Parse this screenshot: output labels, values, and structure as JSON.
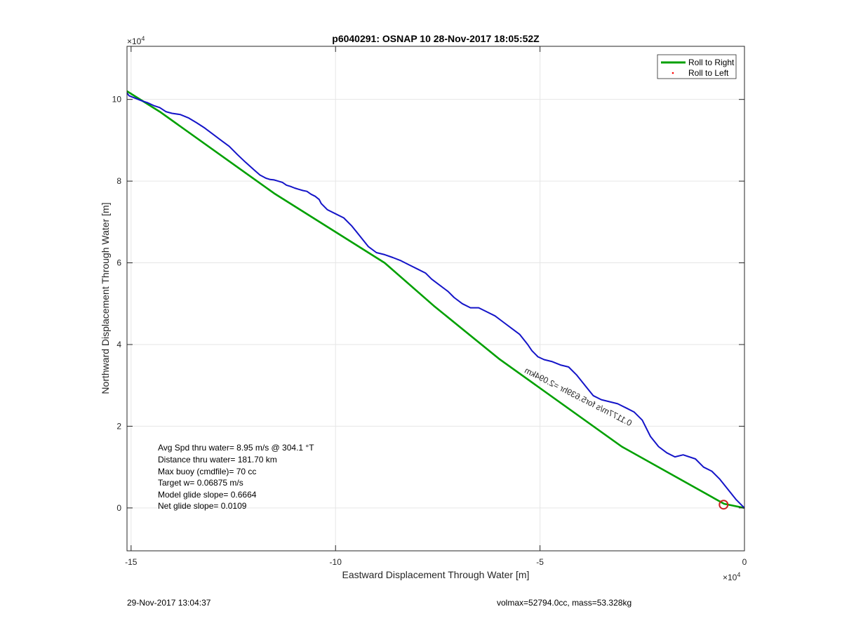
{
  "chart_data": {
    "type": "line",
    "title": "p6040291: OSNAP 10 28-Nov-2017 18:05:52Z",
    "xlabel": "Eastward Displacement Through Water [m]",
    "ylabel": "Northward Displacement Through Water [m]",
    "x_multiplier": "×10",
    "x_exponent": "4",
    "y_multiplier": "×10",
    "y_exponent": "4",
    "xlim": [
      -151000,
      0
    ],
    "ylim": [
      -10500,
      113000
    ],
    "x_ticks": [
      -150000,
      -100000,
      -50000,
      0
    ],
    "x_tick_labels": [
      "-15",
      "-10",
      "-5",
      "0"
    ],
    "y_ticks": [
      0,
      20000,
      40000,
      60000,
      80000,
      100000
    ],
    "y_tick_labels": [
      "0",
      "2",
      "4",
      "6",
      "8",
      "10"
    ],
    "grid": true,
    "legend_position": "top-right",
    "legend": [
      {
        "label": "Roll to Right",
        "style": "line",
        "color": "#00a000"
      },
      {
        "label": "Roll to Left",
        "style": "dot",
        "color": "#ff0000"
      }
    ],
    "series": [
      {
        "name": "Roll to Right",
        "color": "#00a000",
        "x": [
          0,
          -5000,
          -30000,
          -60000,
          -76000,
          -88000,
          -115000,
          -143000,
          -151000
        ],
        "y": [
          0,
          1000,
          15000,
          36500,
          49500,
          60000,
          77000,
          97000,
          102000
        ]
      },
      {
        "color": "#1414c8",
        "x": [
          0,
          -2000,
          -4000,
          -6000,
          -8000,
          -10000,
          -12000,
          -15000,
          -17000,
          -19000,
          -21000,
          -23000,
          -25000,
          -27000,
          -29000,
          -31000,
          -33000,
          -35000,
          -37000,
          -39000,
          -41000,
          -43000,
          -45000,
          -47000,
          -49000,
          -50500,
          -52000,
          -53000,
          -55000,
          -57000,
          -59000,
          -61000,
          -63000,
          -65000,
          -67000,
          -69000,
          -71000,
          -72500,
          -74500,
          -76500,
          -78000,
          -80000,
          -82000,
          -84000,
          -86000,
          -88000,
          -90000,
          -92000,
          -94000,
          -96000,
          -98000,
          -100000,
          -102000,
          -103500,
          -104000,
          -105000,
          -106000,
          -107000,
          -108000,
          -109000,
          -110000,
          -111000,
          -112000,
          -113000,
          -115000,
          -116000,
          -117000,
          -118500,
          -120000,
          -122000,
          -124000,
          -126000,
          -128000,
          -130000,
          -132000,
          -134000,
          -136000,
          -138000,
          -140000,
          -141500,
          -143000,
          -144500,
          -146000,
          -147500,
          -149000,
          -150500,
          -151000
        ],
        "y": [
          0,
          2000,
          4500,
          7000,
          9000,
          10000,
          12000,
          13000,
          12500,
          13500,
          15000,
          17500,
          21500,
          23500,
          24500,
          25500,
          26000,
          26500,
          27500,
          30000,
          32500,
          34500,
          35000,
          35800,
          36300,
          37000,
          38500,
          40000,
          42500,
          44000,
          45500,
          47000,
          48000,
          49000,
          49000,
          50000,
          51500,
          53000,
          54500,
          56000,
          57500,
          58500,
          59500,
          60500,
          61300,
          62000,
          62500,
          64000,
          66500,
          69000,
          71000,
          72000,
          73000,
          74500,
          75500,
          76300,
          76800,
          77500,
          77700,
          78000,
          78300,
          78700,
          79000,
          79700,
          80300,
          80400,
          80700,
          81500,
          82800,
          84600,
          86500,
          88500,
          90000,
          91500,
          93000,
          94300,
          95500,
          96300,
          96600,
          97000,
          98000,
          98500,
          99200,
          99700,
          100300,
          100900,
          101600
        ]
      }
    ],
    "annotations": [
      {
        "text": "0.1177m/s for5.639hr =2.094km",
        "x": -28000,
        "y": 20000,
        "rotation_deg": 27
      }
    ],
    "markers": [
      {
        "type": "circle",
        "x": -5100,
        "y": 800,
        "color": "#cc2222"
      }
    ]
  },
  "stats": [
    "Avg Spd thru water=  8.95 m/s @ 304.1 °T",
    "Distance thru water= 181.70 km",
    "Max buoy (cmdfile)= 70 cc",
    "Target w= 0.06875 m/s",
    "Model glide slope= 0.6664",
    "Net glide slope= 0.0109"
  ],
  "footer": {
    "left": "29-Nov-2017 13:04:37",
    "right": "volmax=52794.0cc, mass=53.328kg"
  }
}
